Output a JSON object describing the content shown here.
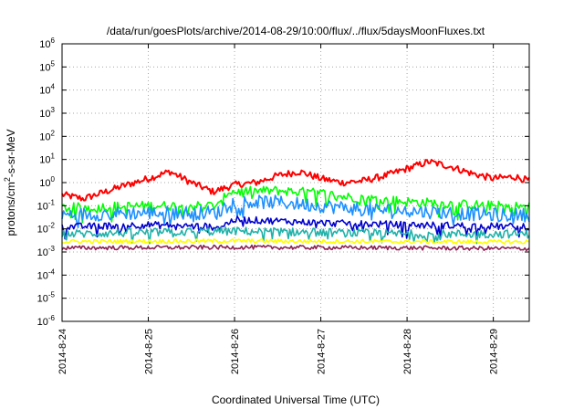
{
  "chart_data": {
    "type": "line",
    "title": "/data/run/goesPlots/archive/2014-08-29/10:00/flux/../flux/5daysMoonFluxes.txt",
    "xlabel": "Coordinated Universal Time (UTC)",
    "ylabel_parts": [
      "protons/cm",
      "2",
      "-s-sr-MeV"
    ],
    "y_scale": "log",
    "ylim": [
      1e-06,
      1000000.0
    ],
    "x_range_days": [
      "2014-08-24",
      "2014-08-29 10:00"
    ],
    "grid": true,
    "legend": "none",
    "x_ticks": [
      "2014-8-24",
      "2014-8-25",
      "2014-8-26",
      "2014-8-27",
      "2014-8-28",
      "2014-8-29"
    ],
    "y_ticks": [
      {
        "value": 1e-06,
        "mant": "10",
        "exp": "-6"
      },
      {
        "value": 1e-05,
        "mant": "10",
        "exp": "-5"
      },
      {
        "value": 0.0001,
        "mant": "10",
        "exp": "-4"
      },
      {
        "value": 0.001,
        "mant": "10",
        "exp": "-3"
      },
      {
        "value": 0.01,
        "mant": "10",
        "exp": "-2"
      },
      {
        "value": 0.1,
        "mant": "10",
        "exp": "-1"
      },
      {
        "value": 1,
        "mant": "10",
        "exp": "0"
      },
      {
        "value": 10,
        "mant": "10",
        "exp": "1"
      },
      {
        "value": 100,
        "mant": "10",
        "exp": "2"
      },
      {
        "value": 1000,
        "mant": "10",
        "exp": "3"
      },
      {
        "value": 10000,
        "mant": "10",
        "exp": "4"
      },
      {
        "value": 100000,
        "mant": "10",
        "exp": "5"
      },
      {
        "value": 1000000,
        "mant": "10",
        "exp": "6"
      }
    ],
    "series": [
      {
        "color": "#ff0000",
        "jitter": 0.05,
        "x": [
          "2014-08-24 00:00",
          "2014-08-24 06:00",
          "2014-08-24 12:00",
          "2014-08-24 18:00",
          "2014-08-25 00:00",
          "2014-08-25 06:00",
          "2014-08-25 12:00",
          "2014-08-25 18:00",
          "2014-08-26 00:00",
          "2014-08-26 06:00",
          "2014-08-26 12:00",
          "2014-08-26 18:00",
          "2014-08-27 00:00",
          "2014-08-27 06:00",
          "2014-08-27 12:00",
          "2014-08-27 18:00",
          "2014-08-28 00:00",
          "2014-08-28 06:00",
          "2014-08-28 12:00",
          "2014-08-28 18:00",
          "2014-08-29 00:00",
          "2014-08-29 06:00",
          "2014-08-29 10:00"
        ],
        "y": [
          0.3,
          0.2,
          0.4,
          0.8,
          1.5,
          3.0,
          1.0,
          0.4,
          0.8,
          1.0,
          2.0,
          3.0,
          1.5,
          1.0,
          1.2,
          2.0,
          4.0,
          8.0,
          5.0,
          2.5,
          1.5,
          1.8,
          1.2
        ]
      },
      {
        "color": "#00ff00",
        "jitter": 0.07,
        "x": [
          "2014-08-24 00:00",
          "2014-08-25 00:00",
          "2014-08-25 20:00",
          "2014-08-25 22:00",
          "2014-08-26 12:00",
          "2014-08-27 00:00",
          "2014-08-27 06:00",
          "2014-08-27 18:00",
          "2014-08-28 00:00",
          "2014-08-28 12:00",
          "2014-08-29 00:00",
          "2014-08-29 10:00"
        ],
        "y": [
          0.08,
          0.1,
          0.1,
          0.4,
          0.45,
          0.35,
          0.25,
          0.18,
          0.15,
          0.12,
          0.1,
          0.09
        ]
      },
      {
        "color": "#1e90ff",
        "jitter": 0.1,
        "x": [
          "2014-08-24 00:00",
          "2014-08-25 00:00",
          "2014-08-25 20:00",
          "2014-08-25 22:00",
          "2014-08-26 12:00",
          "2014-08-27 00:00",
          "2014-08-27 12:00",
          "2014-08-28 00:00",
          "2014-08-28 12:00",
          "2014-08-29 00:00",
          "2014-08-29 10:00"
        ],
        "y": [
          0.04,
          0.05,
          0.05,
          0.15,
          0.14,
          0.1,
          0.07,
          0.06,
          0.05,
          0.04,
          0.04
        ]
      },
      {
        "color": "#0000cd",
        "jitter": 0.05,
        "x": [
          "2014-08-24 00:00",
          "2014-08-25 00:00",
          "2014-08-25 20:00",
          "2014-08-26 00:00",
          "2014-08-26 12:00",
          "2014-08-27 00:00",
          "2014-08-28 00:00",
          "2014-08-29 00:00",
          "2014-08-29 10:00"
        ],
        "y": [
          0.012,
          0.015,
          0.012,
          0.025,
          0.022,
          0.018,
          0.015,
          0.013,
          0.012
        ]
      },
      {
        "color": "#20b2aa",
        "jitter": 0.06,
        "x": [
          "2014-08-24 00:00",
          "2014-08-26 00:00",
          "2014-08-27 00:00",
          "2014-08-28 00:00",
          "2014-08-29 10:00"
        ],
        "y": [
          0.006,
          0.008,
          0.007,
          0.006,
          0.006
        ]
      },
      {
        "color": "#ffff00",
        "jitter": 0.03,
        "x": [
          "2014-08-24 00:00",
          "2014-08-26 00:00",
          "2014-08-28 00:00",
          "2014-08-29 10:00"
        ],
        "y": [
          0.0028,
          0.003,
          0.0028,
          0.0027
        ]
      },
      {
        "color": "#8b2252",
        "jitter": 0.03,
        "x": [
          "2014-08-24 00:00",
          "2014-08-26 00:00",
          "2014-08-28 00:00",
          "2014-08-29 10:00"
        ],
        "y": [
          0.0015,
          0.0016,
          0.0015,
          0.0014
        ]
      }
    ]
  }
}
